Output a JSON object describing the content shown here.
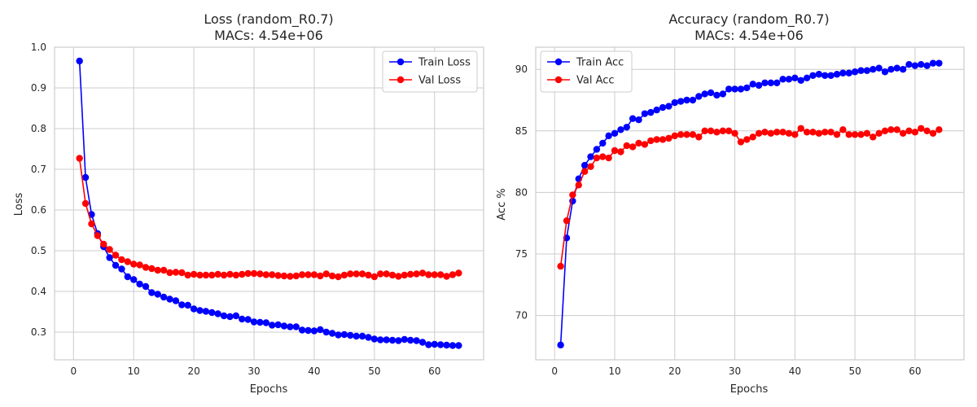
{
  "chart_data": [
    {
      "type": "line",
      "title": "Loss (random_R0.7)",
      "subtitle": "MACs: 4.54e+06",
      "xlabel": "Epochs",
      "ylabel": "Loss",
      "xlim": [
        -3.15,
        68.15
      ],
      "ylim": [
        0.232,
        1.0
      ],
      "xticks": [
        "0",
        "10",
        "20",
        "30",
        "40",
        "50",
        "60"
      ],
      "yticks": [
        "0.3",
        "0.4",
        "0.5",
        "0.6",
        "0.7",
        "0.8",
        "0.9",
        "1.0"
      ],
      "grid": true,
      "legend_position": "top-right",
      "x": [
        1,
        2,
        3,
        4,
        5,
        6,
        7,
        8,
        9,
        10,
        11,
        12,
        13,
        14,
        15,
        16,
        17,
        18,
        19,
        20,
        21,
        22,
        23,
        24,
        25,
        26,
        27,
        28,
        29,
        30,
        31,
        32,
        33,
        34,
        35,
        36,
        37,
        38,
        39,
        40,
        41,
        42,
        43,
        44,
        45,
        46,
        47,
        48,
        49,
        50,
        51,
        52,
        53,
        54,
        55,
        56,
        57,
        58,
        59,
        60,
        61,
        62,
        63,
        64
      ],
      "series": [
        {
          "name": "Train Loss",
          "color": "#0000ff",
          "values": [
            0.966,
            0.68,
            0.589,
            0.542,
            0.51,
            0.483,
            0.464,
            0.455,
            0.436,
            0.429,
            0.418,
            0.412,
            0.397,
            0.393,
            0.386,
            0.381,
            0.377,
            0.367,
            0.366,
            0.357,
            0.353,
            0.351,
            0.348,
            0.345,
            0.34,
            0.338,
            0.34,
            0.332,
            0.331,
            0.325,
            0.324,
            0.323,
            0.317,
            0.318,
            0.315,
            0.313,
            0.313,
            0.305,
            0.304,
            0.303,
            0.306,
            0.3,
            0.297,
            0.293,
            0.294,
            0.292,
            0.29,
            0.29,
            0.287,
            0.283,
            0.281,
            0.281,
            0.28,
            0.279,
            0.282,
            0.28,
            0.279,
            0.275,
            0.269,
            0.27,
            0.269,
            0.268,
            0.267,
            0.267
          ]
        },
        {
          "name": "Val Loss",
          "color": "#ff0000",
          "values": [
            0.727,
            0.616,
            0.566,
            0.537,
            0.516,
            0.503,
            0.489,
            0.478,
            0.473,
            0.467,
            0.465,
            0.459,
            0.456,
            0.452,
            0.452,
            0.446,
            0.447,
            0.446,
            0.44,
            0.442,
            0.44,
            0.44,
            0.44,
            0.442,
            0.44,
            0.442,
            0.44,
            0.442,
            0.444,
            0.444,
            0.443,
            0.441,
            0.441,
            0.439,
            0.438,
            0.437,
            0.438,
            0.441,
            0.441,
            0.441,
            0.438,
            0.443,
            0.438,
            0.436,
            0.44,
            0.443,
            0.443,
            0.443,
            0.44,
            0.436,
            0.443,
            0.443,
            0.44,
            0.437,
            0.44,
            0.442,
            0.443,
            0.445,
            0.441,
            0.441,
            0.441,
            0.437,
            0.441,
            0.445
          ]
        }
      ]
    },
    {
      "type": "line",
      "title": "Accuracy (random_R0.7)",
      "subtitle": "MACs: 4.54e+06",
      "xlabel": "Epochs",
      "ylabel": "Acc %",
      "xlim": [
        -3.15,
        68.15
      ],
      "ylim": [
        66.4,
        91.8
      ],
      "xticks": [
        "0",
        "10",
        "20",
        "30",
        "40",
        "50",
        "60"
      ],
      "yticks": [
        "70",
        "75",
        "80",
        "85",
        "90"
      ],
      "grid": true,
      "legend_position": "top-left",
      "x": [
        1,
        2,
        3,
        4,
        5,
        6,
        7,
        8,
        9,
        10,
        11,
        12,
        13,
        14,
        15,
        16,
        17,
        18,
        19,
        20,
        21,
        22,
        23,
        24,
        25,
        26,
        27,
        28,
        29,
        30,
        31,
        32,
        33,
        34,
        35,
        36,
        37,
        38,
        39,
        40,
        41,
        42,
        43,
        44,
        45,
        46,
        47,
        48,
        49,
        50,
        51,
        52,
        53,
        54,
        55,
        56,
        57,
        58,
        59,
        60,
        61,
        62,
        63,
        64
      ],
      "series": [
        {
          "name": "Train Acc",
          "color": "#0000ff",
          "values": [
            67.6,
            76.3,
            79.3,
            81.1,
            82.2,
            82.9,
            83.5,
            84.0,
            84.6,
            84.8,
            85.1,
            85.3,
            86.0,
            85.9,
            86.4,
            86.5,
            86.7,
            86.9,
            87.0,
            87.3,
            87.4,
            87.5,
            87.5,
            87.8,
            88.0,
            88.1,
            87.9,
            88.0,
            88.4,
            88.4,
            88.4,
            88.5,
            88.8,
            88.7,
            88.9,
            88.9,
            88.9,
            89.2,
            89.2,
            89.3,
            89.1,
            89.3,
            89.5,
            89.6,
            89.5,
            89.5,
            89.6,
            89.7,
            89.7,
            89.8,
            89.9,
            89.9,
            90.0,
            90.1,
            89.8,
            90.0,
            90.1,
            90.0,
            90.4,
            90.3,
            90.4,
            90.3,
            90.5,
            90.5
          ]
        },
        {
          "name": "Val Acc",
          "color": "#ff0000",
          "values": [
            74.0,
            77.7,
            79.8,
            80.6,
            81.7,
            82.1,
            82.8,
            82.9,
            82.8,
            83.4,
            83.3,
            83.8,
            83.7,
            84.0,
            83.9,
            84.2,
            84.3,
            84.3,
            84.4,
            84.6,
            84.7,
            84.7,
            84.7,
            84.5,
            85.0,
            85.0,
            84.9,
            85.0,
            85.0,
            84.8,
            84.1,
            84.3,
            84.5,
            84.8,
            84.9,
            84.8,
            84.9,
            84.9,
            84.8,
            84.7,
            85.2,
            84.9,
            84.9,
            84.8,
            84.9,
            84.9,
            84.7,
            85.1,
            84.7,
            84.7,
            84.7,
            84.8,
            84.5,
            84.8,
            85.0,
            85.1,
            85.1,
            84.8,
            85.0,
            84.9,
            85.2,
            85.0,
            84.8,
            85.1
          ]
        }
      ]
    }
  ]
}
